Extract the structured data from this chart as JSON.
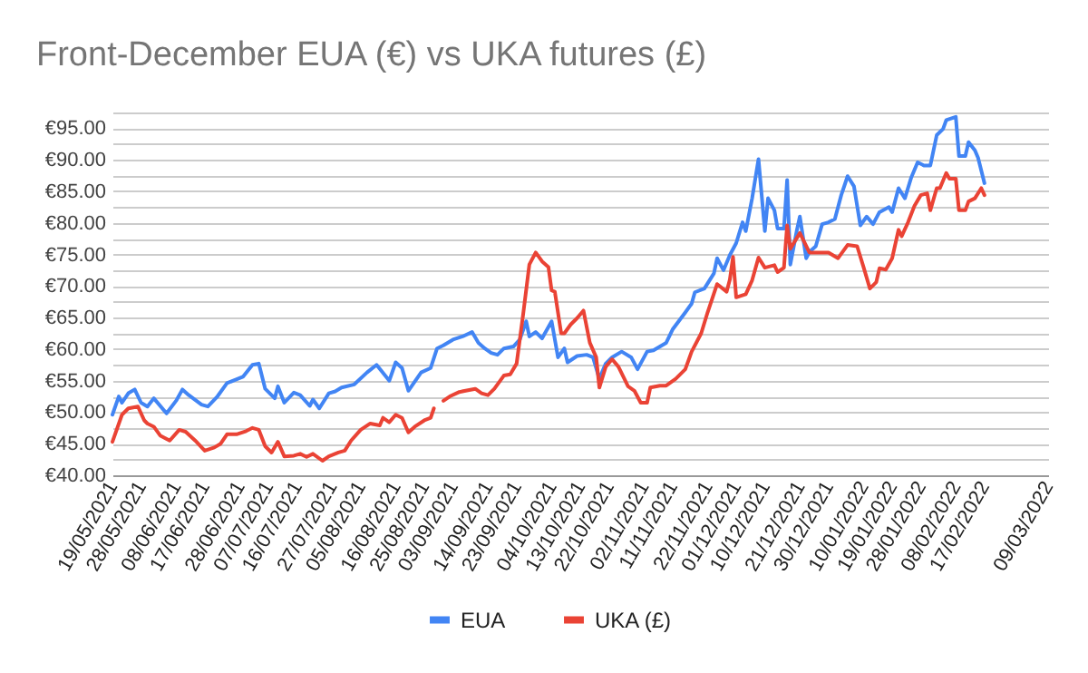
{
  "chart_data": {
    "type": "line",
    "title": "Front-December EUA (€) vs UKA futures (£)",
    "series": [
      {
        "name": "EUA",
        "color": "#4285f4",
        "x": [
          "2021-05-19",
          "2021-05-21",
          "2021-05-22",
          "2021-05-24",
          "2021-05-26",
          "2021-05-28",
          "2021-05-30",
          "2021-06-01",
          "2021-06-05",
          "2021-06-08",
          "2021-06-10",
          "2021-06-12",
          "2021-06-16",
          "2021-06-18",
          "2021-06-21",
          "2021-06-24",
          "2021-06-26",
          "2021-06-29",
          "2021-07-02",
          "2021-07-04",
          "2021-07-06",
          "2021-07-09",
          "2021-07-10",
          "2021-07-12",
          "2021-07-15",
          "2021-07-17",
          "2021-07-20",
          "2021-07-21",
          "2021-07-23",
          "2021-07-26",
          "2021-07-28",
          "2021-07-30",
          "2021-08-03",
          "2021-08-07",
          "2021-08-10",
          "2021-08-14",
          "2021-08-16",
          "2021-08-18",
          "2021-08-20",
          "2021-08-24",
          "2021-08-27",
          "2021-08-29",
          "2021-08-31",
          "2021-09-03",
          "2021-09-06",
          "2021-09-09",
          "2021-09-11",
          "2021-09-13",
          "2021-09-15",
          "2021-09-17",
          "2021-09-19",
          "2021-09-22",
          "2021-09-24",
          "2021-09-26",
          "2021-09-27",
          "2021-09-29",
          "2021-10-01",
          "2021-10-04",
          "2021-10-06",
          "2021-10-08",
          "2021-10-09",
          "2021-10-12",
          "2021-10-15",
          "2021-10-17",
          "2021-10-19",
          "2021-10-21",
          "2021-10-23",
          "2021-10-26",
          "2021-10-29",
          "2021-10-31",
          "2021-11-03",
          "2021-11-05",
          "2021-11-09",
          "2021-11-11",
          "2021-11-15",
          "2021-11-17",
          "2021-11-18",
          "2021-11-21",
          "2021-11-24",
          "2021-11-25",
          "2021-11-27",
          "2021-11-29",
          "2021-12-01",
          "2021-12-03",
          "2021-12-04",
          "2021-12-06",
          "2021-12-08",
          "2021-12-10",
          "2021-12-11",
          "2021-12-13",
          "2021-12-14",
          "2021-12-16",
          "2021-12-17",
          "2021-12-18",
          "2021-12-20",
          "2021-12-21",
          "2021-12-23",
          "2021-12-24",
          "2021-12-26",
          "2021-12-28",
          "2021-12-30",
          "2022-01-01",
          "2022-01-03",
          "2022-01-05",
          "2022-01-07",
          "2022-01-09",
          "2022-01-11",
          "2022-01-13",
          "2022-01-15",
          "2022-01-18",
          "2022-01-19",
          "2022-01-21",
          "2022-01-23",
          "2022-01-25",
          "2022-01-27",
          "2022-01-29",
          "2022-01-31",
          "2022-02-02",
          "2022-02-04",
          "2022-02-05",
          "2022-02-08",
          "2022-02-09",
          "2022-02-11",
          "2022-02-12",
          "2022-02-14",
          "2022-02-15",
          "2022-02-17"
        ],
        "values": [
          49.6,
          52.5,
          51.5,
          53,
          53.6,
          51.5,
          50.9,
          52.2,
          49.8,
          51.8,
          53.6,
          52.7,
          51.2,
          50.9,
          52.5,
          54.6,
          55,
          55.6,
          57.5,
          57.7,
          53.7,
          52.2,
          54.1,
          51.5,
          53.1,
          52.7,
          51,
          52,
          50.6,
          53,
          53.3,
          53.9,
          54.4,
          56.3,
          57.5,
          55,
          57.9,
          57,
          53.4,
          56.3,
          57,
          60.1,
          60.6,
          61.5,
          62,
          62.7,
          61,
          60.1,
          59.4,
          59.1,
          60.1,
          60.4,
          61.5,
          64.4,
          62,
          62.7,
          61.7,
          64.4,
          58.7,
          60.1,
          57.9,
          58.9,
          59.1,
          58.7,
          55.3,
          57.7,
          58.7,
          59.6,
          58.7,
          56.8,
          59.6,
          59.8,
          61,
          63.1,
          65.8,
          67.2,
          69,
          69.6,
          72,
          74.4,
          72.5,
          74.9,
          76.8,
          80.1,
          78.7,
          83.9,
          90.1,
          78.7,
          83.9,
          82,
          79.1,
          79.1,
          86.8,
          73.4,
          78.7,
          81,
          74.4,
          75.4,
          76.3,
          79.8,
          80.1,
          80.6,
          84.4,
          87.4,
          85.8,
          79.6,
          81,
          79.8,
          81.7,
          82.5,
          81.7,
          85.5,
          83.9,
          87.2,
          89.6,
          89.1,
          89.1,
          93.9,
          94.9,
          96.3,
          96.8,
          90.6,
          90.6,
          92.8,
          91.5,
          90.3,
          86.3
        ]
      },
      {
        "name": "UKA (£)",
        "color": "#ea4335",
        "x": [
          "2021-05-19",
          "2021-05-22",
          "2021-05-24",
          "2021-05-27",
          "2021-05-29",
          "2021-05-30",
          "2021-06-01",
          "2021-06-03",
          "2021-06-06",
          "2021-06-09",
          "2021-06-11",
          "2021-06-14",
          "2021-06-17",
          "2021-06-20",
          "2021-06-22",
          "2021-06-24",
          "2021-06-27",
          "2021-06-30",
          "2021-07-02",
          "2021-07-04",
          "2021-07-06",
          "2021-07-08",
          "2021-07-10",
          "2021-07-12",
          "2021-07-15",
          "2021-07-17",
          "2021-07-19",
          "2021-07-21",
          "2021-07-24",
          "2021-07-26",
          "2021-07-29",
          "2021-07-31",
          "2021-08-02",
          "2021-08-05",
          "2021-08-08",
          "2021-08-11",
          "2021-08-12",
          "2021-08-14",
          "2021-08-16",
          "2021-08-18",
          "2021-08-20",
          "2021-08-22",
          "2021-08-25",
          "2021-08-27",
          "2021-08-28",
          "2021-08-29",
          "2021-08-31",
          "2021-09-02",
          "2021-09-05",
          "2021-09-07",
          "2021-09-10",
          "2021-09-12",
          "2021-09-14",
          "2021-09-16",
          "2021-09-19",
          "2021-09-21",
          "2021-09-23",
          "2021-09-25",
          "2021-09-27",
          "2021-09-29",
          "2021-10-01",
          "2021-10-03",
          "2021-10-04",
          "2021-10-05",
          "2021-10-07",
          "2021-10-08",
          "2021-10-10",
          "2021-10-12",
          "2021-10-14",
          "2021-10-16",
          "2021-10-18",
          "2021-10-19",
          "2021-10-21",
          "2021-10-23",
          "2021-10-25",
          "2021-10-28",
          "2021-10-30",
          "2021-11-01",
          "2021-11-03",
          "2021-11-04",
          "2021-11-07",
          "2021-11-09",
          "2021-11-12",
          "2021-11-15",
          "2021-11-17",
          "2021-11-20",
          "2021-11-22",
          "2021-11-25",
          "2021-11-28",
          "2021-11-29",
          "2021-11-30",
          "2021-12-01",
          "2021-12-04",
          "2021-12-06",
          "2021-12-08",
          "2021-12-10",
          "2021-12-13",
          "2021-12-14",
          "2021-12-16",
          "2021-12-17",
          "2021-12-18",
          "2021-12-21",
          "2021-12-24",
          "2021-12-27",
          "2021-12-30",
          "2022-01-02",
          "2022-01-05",
          "2022-01-08",
          "2022-01-10",
          "2022-01-12",
          "2022-01-14",
          "2022-01-15",
          "2022-01-17",
          "2022-01-19",
          "2022-01-21",
          "2022-01-22",
          "2022-01-24",
          "2022-01-26",
          "2022-01-28",
          "2022-01-30",
          "2022-01-31",
          "2022-02-02",
          "2022-02-03",
          "2022-02-05",
          "2022-02-06",
          "2022-02-08",
          "2022-02-09",
          "2022-02-11",
          "2022-02-12",
          "2022-02-14",
          "2022-02-16",
          "2022-02-17"
        ],
        "values": [
          45.3,
          49.6,
          50.6,
          50.9,
          48.7,
          48.2,
          47.7,
          46.3,
          45.5,
          47.2,
          46.9,
          45.5,
          43.9,
          44.4,
          45,
          46.5,
          46.5,
          47,
          47.5,
          47.2,
          44.6,
          43.6,
          45.3,
          43,
          43.1,
          43.4,
          42.9,
          43.4,
          42.3,
          43,
          43.6,
          43.9,
          45.5,
          47.2,
          48.2,
          47.9,
          49.1,
          48.4,
          49.6,
          49.1,
          46.8,
          47.7,
          48.7,
          49.1,
          50.6,
          null,
          51.8,
          52.5,
          53.2,
          53.4,
          53.7,
          53,
          52.7,
          53.7,
          55.8,
          56,
          57.7,
          65.3,
          73.4,
          75.3,
          73.9,
          73,
          69.3,
          69.1,
          62.5,
          62.5,
          63.9,
          64.9,
          66.1,
          61,
          58.7,
          53.9,
          57.2,
          58.4,
          57.2,
          54.1,
          53.4,
          51.5,
          51.5,
          53.9,
          54.2,
          54.2,
          55.3,
          56.8,
          59.6,
          62.5,
          65.8,
          70.3,
          69.1,
          71,
          74.6,
          68.2,
          68.7,
          70.9,
          74.5,
          72.9,
          73.3,
          72.2,
          72.9,
          79.6,
          75.9,
          78.4,
          75.3,
          75.3,
          75.3,
          74.4,
          76.5,
          76.3,
          73,
          69.6,
          70.6,
          72.8,
          72.6,
          74.4,
          78.9,
          77.9,
          80.1,
          82.7,
          84.4,
          84.7,
          82,
          85.5,
          85.5,
          87.9,
          87,
          87,
          82,
          82,
          83.4,
          83.9,
          85.5,
          84.4
        ]
      }
    ],
    "xlim": [
      "2021-05-19",
      "2022-03-09"
    ],
    "xticks": [
      {
        "value": "2021-05-19",
        "label": "19/05/2021"
      },
      {
        "value": "2021-05-28",
        "label": "28/05/2021"
      },
      {
        "value": "2021-06-08",
        "label": "08/06/2021"
      },
      {
        "value": "2021-06-17",
        "label": "17/06/2021"
      },
      {
        "value": "2021-06-28",
        "label": "28/06/2021"
      },
      {
        "value": "2021-07-07",
        "label": "07/07/2021"
      },
      {
        "value": "2021-07-16",
        "label": "16/07/2021"
      },
      {
        "value": "2021-07-27",
        "label": "27/07/2021"
      },
      {
        "value": "2021-08-05",
        "label": "05/08/2021"
      },
      {
        "value": "2021-08-16",
        "label": "16/08/2021"
      },
      {
        "value": "2021-08-25",
        "label": "25/08/2021"
      },
      {
        "value": "2021-09-03",
        "label": "03/09/2021"
      },
      {
        "value": "2021-09-14",
        "label": "14/09/2021"
      },
      {
        "value": "2021-09-23",
        "label": "23/09/2021"
      },
      {
        "value": "2021-10-04",
        "label": "04/10/2021"
      },
      {
        "value": "2021-10-13",
        "label": "13/10/2021"
      },
      {
        "value": "2021-10-22",
        "label": "22/10/2021"
      },
      {
        "value": "2021-11-02",
        "label": "02/11/2021"
      },
      {
        "value": "2021-11-11",
        "label": "11/11/2021"
      },
      {
        "value": "2021-11-22",
        "label": "22/11/2021"
      },
      {
        "value": "2021-12-01",
        "label": "01/12/2021"
      },
      {
        "value": "2021-12-10",
        "label": "10/12/2021"
      },
      {
        "value": "2021-12-21",
        "label": "21/12/2021"
      },
      {
        "value": "2021-12-30",
        "label": "30/12/2021"
      },
      {
        "value": "2022-01-10",
        "label": "10/01/2022"
      },
      {
        "value": "2022-01-19",
        "label": "19/01/2022"
      },
      {
        "value": "2022-01-28",
        "label": "28/01/2022"
      },
      {
        "value": "2022-02-08",
        "label": "08/02/2022"
      },
      {
        "value": "2022-02-17",
        "label": "17/02/2022"
      },
      {
        "value": "2022-03-09",
        "label": "09/03/2022"
      }
    ],
    "ylim": [
      40,
      97.5
    ],
    "yticks": [
      {
        "value": 40,
        "label": "€40.00"
      },
      {
        "value": 42.5,
        "label": null
      },
      {
        "value": 45,
        "label": "€45.00"
      },
      {
        "value": 47.5,
        "label": null
      },
      {
        "value": 50,
        "label": "€50.00"
      },
      {
        "value": 52.5,
        "label": null
      },
      {
        "value": 55,
        "label": "€55.00"
      },
      {
        "value": 57.5,
        "label": null
      },
      {
        "value": 60,
        "label": "€60.00"
      },
      {
        "value": 62.5,
        "label": null
      },
      {
        "value": 65,
        "label": "€65.00"
      },
      {
        "value": 67.5,
        "label": null
      },
      {
        "value": 70,
        "label": "€70.00"
      },
      {
        "value": 72.5,
        "label": null
      },
      {
        "value": 75,
        "label": "€75.00"
      },
      {
        "value": 77.5,
        "label": null
      },
      {
        "value": 80,
        "label": "€80.00"
      },
      {
        "value": 82.5,
        "label": null
      },
      {
        "value": 85,
        "label": "€85.00"
      },
      {
        "value": 87.5,
        "label": null
      },
      {
        "value": 90,
        "label": "€90.00"
      },
      {
        "value": 92.5,
        "label": null
      },
      {
        "value": 95,
        "label": "€95.00"
      },
      {
        "value": 97.5,
        "label": null
      }
    ],
    "grid": "y",
    "legend": "bottom",
    "line_style": "solid"
  }
}
